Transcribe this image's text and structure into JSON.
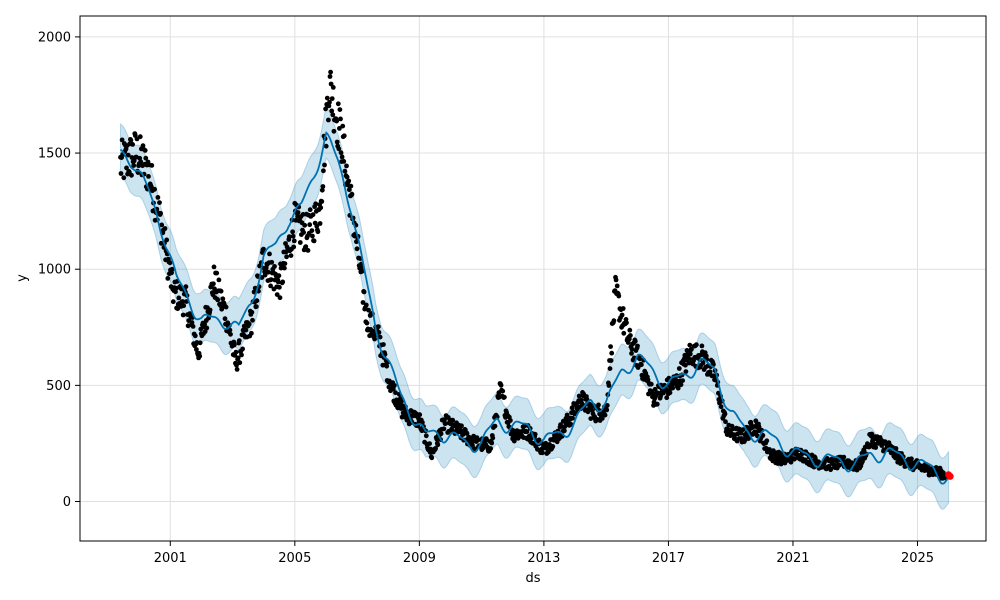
{
  "chart_data": {
    "type": "line",
    "xlabel": "ds",
    "ylabel": "y",
    "xlim": [
      1998.1,
      2027.2
    ],
    "ylim": [
      -170,
      2090
    ],
    "grid": true,
    "x_ticks": [
      2001,
      2005,
      2009,
      2013,
      2017,
      2021,
      2025
    ],
    "x_tick_labels": [
      "2001",
      "2005",
      "2009",
      "2013",
      "2017",
      "2021",
      "2025"
    ],
    "y_ticks": [
      0,
      500,
      1000,
      1500,
      2000
    ],
    "y_tick_labels": [
      "0",
      "500",
      "1000",
      "1500",
      "2000"
    ],
    "colors": {
      "observed": "#000000",
      "forecast": "#0072B2",
      "interval": "#0072B2",
      "highlight": "#ff0000"
    },
    "observed_anchors": {
      "x": [
        1999.4,
        1999.9,
        2000.3,
        2000.7,
        2001.1,
        2001.5,
        2001.9,
        2002.4,
        2002.8,
        2003.1,
        2003.6,
        2004.0,
        2004.5,
        2005.0,
        2005.4,
        2005.8,
        2006.1,
        2006.5,
        2006.9,
        2007.3,
        2007.7,
        2008.1,
        2008.5,
        2009.0,
        2009.4,
        2009.8,
        2010.3,
        2010.8,
        2011.3,
        2011.6,
        2012.0,
        2012.5,
        2013.0,
        2013.4,
        2013.8,
        2014.2,
        2014.6,
        2015.0,
        2015.3,
        2015.7,
        2016.1,
        2016.5,
        2016.9,
        2017.3,
        2017.7,
        2018.1,
        2018.5,
        2018.9,
        2019.4,
        2019.8,
        2020.3,
        2020.7,
        2021.2,
        2021.7,
        2022.2,
        2022.7,
        2023.1,
        2023.5,
        2024.0,
        2024.4,
        2024.8,
        2025.3,
        2025.9
      ],
      "y": [
        1450,
        1500,
        1420,
        1200,
        900,
        860,
        640,
        950,
        800,
        600,
        780,
        1050,
        930,
        1200,
        1150,
        1250,
        1800,
        1560,
        1200,
        800,
        700,
        500,
        380,
        350,
        200,
        340,
        300,
        250,
        240,
        480,
        290,
        300,
        220,
        280,
        350,
        440,
        380,
        390,
        900,
        700,
        600,
        450,
        480,
        520,
        640,
        620,
        540,
        300,
        280,
        330,
        200,
        180,
        210,
        170,
        160,
        170,
        150,
        270,
        240,
        190,
        160,
        140,
        115
      ]
    },
    "forecast_anchors": {
      "x": [
        1999.4,
        1999.8,
        2000.3,
        2000.8,
        2001.2,
        2001.6,
        2002.0,
        2002.4,
        2002.8,
        2003.2,
        2003.6,
        2004.0,
        2004.4,
        2004.8,
        2005.2,
        2005.6,
        2006.0,
        2006.4,
        2006.8,
        2007.2,
        2007.6,
        2008.0,
        2008.4,
        2008.8,
        2009.2,
        2009.6,
        2010.0,
        2010.5,
        2011.0,
        2011.5,
        2012.0,
        2012.5,
        2013.0,
        2013.5,
        2014.0,
        2014.5,
        2015.0,
        2015.5,
        2016.0,
        2016.5,
        2017.0,
        2017.5,
        2018.0,
        2018.5,
        2019.0,
        2019.5,
        2020.0,
        2020.5,
        2021.0,
        2021.5,
        2022.0,
        2022.5,
        2023.0,
        2023.5,
        2024.0,
        2024.5,
        2025.0,
        2025.5,
        2026.0
      ],
      "y": [
        1500,
        1470,
        1330,
        1150,
        950,
        870,
        780,
        780,
        780,
        740,
        860,
        1050,
        1100,
        1220,
        1260,
        1400,
        1580,
        1450,
        1280,
        1000,
        750,
        600,
        450,
        370,
        280,
        300,
        280,
        250,
        250,
        350,
        320,
        320,
        260,
        290,
        340,
        430,
        420,
        560,
        620,
        560,
        500,
        540,
        600,
        560,
        380,
        300,
        290,
        260,
        210,
        190,
        180,
        175,
        160,
        200,
        210,
        190,
        160,
        140,
        95
      ]
    },
    "interval_half_width": 110,
    "highlight_points": [
      {
        "x": 2026.0,
        "y": 115
      },
      {
        "x": 2026.05,
        "y": 108
      }
    ]
  }
}
